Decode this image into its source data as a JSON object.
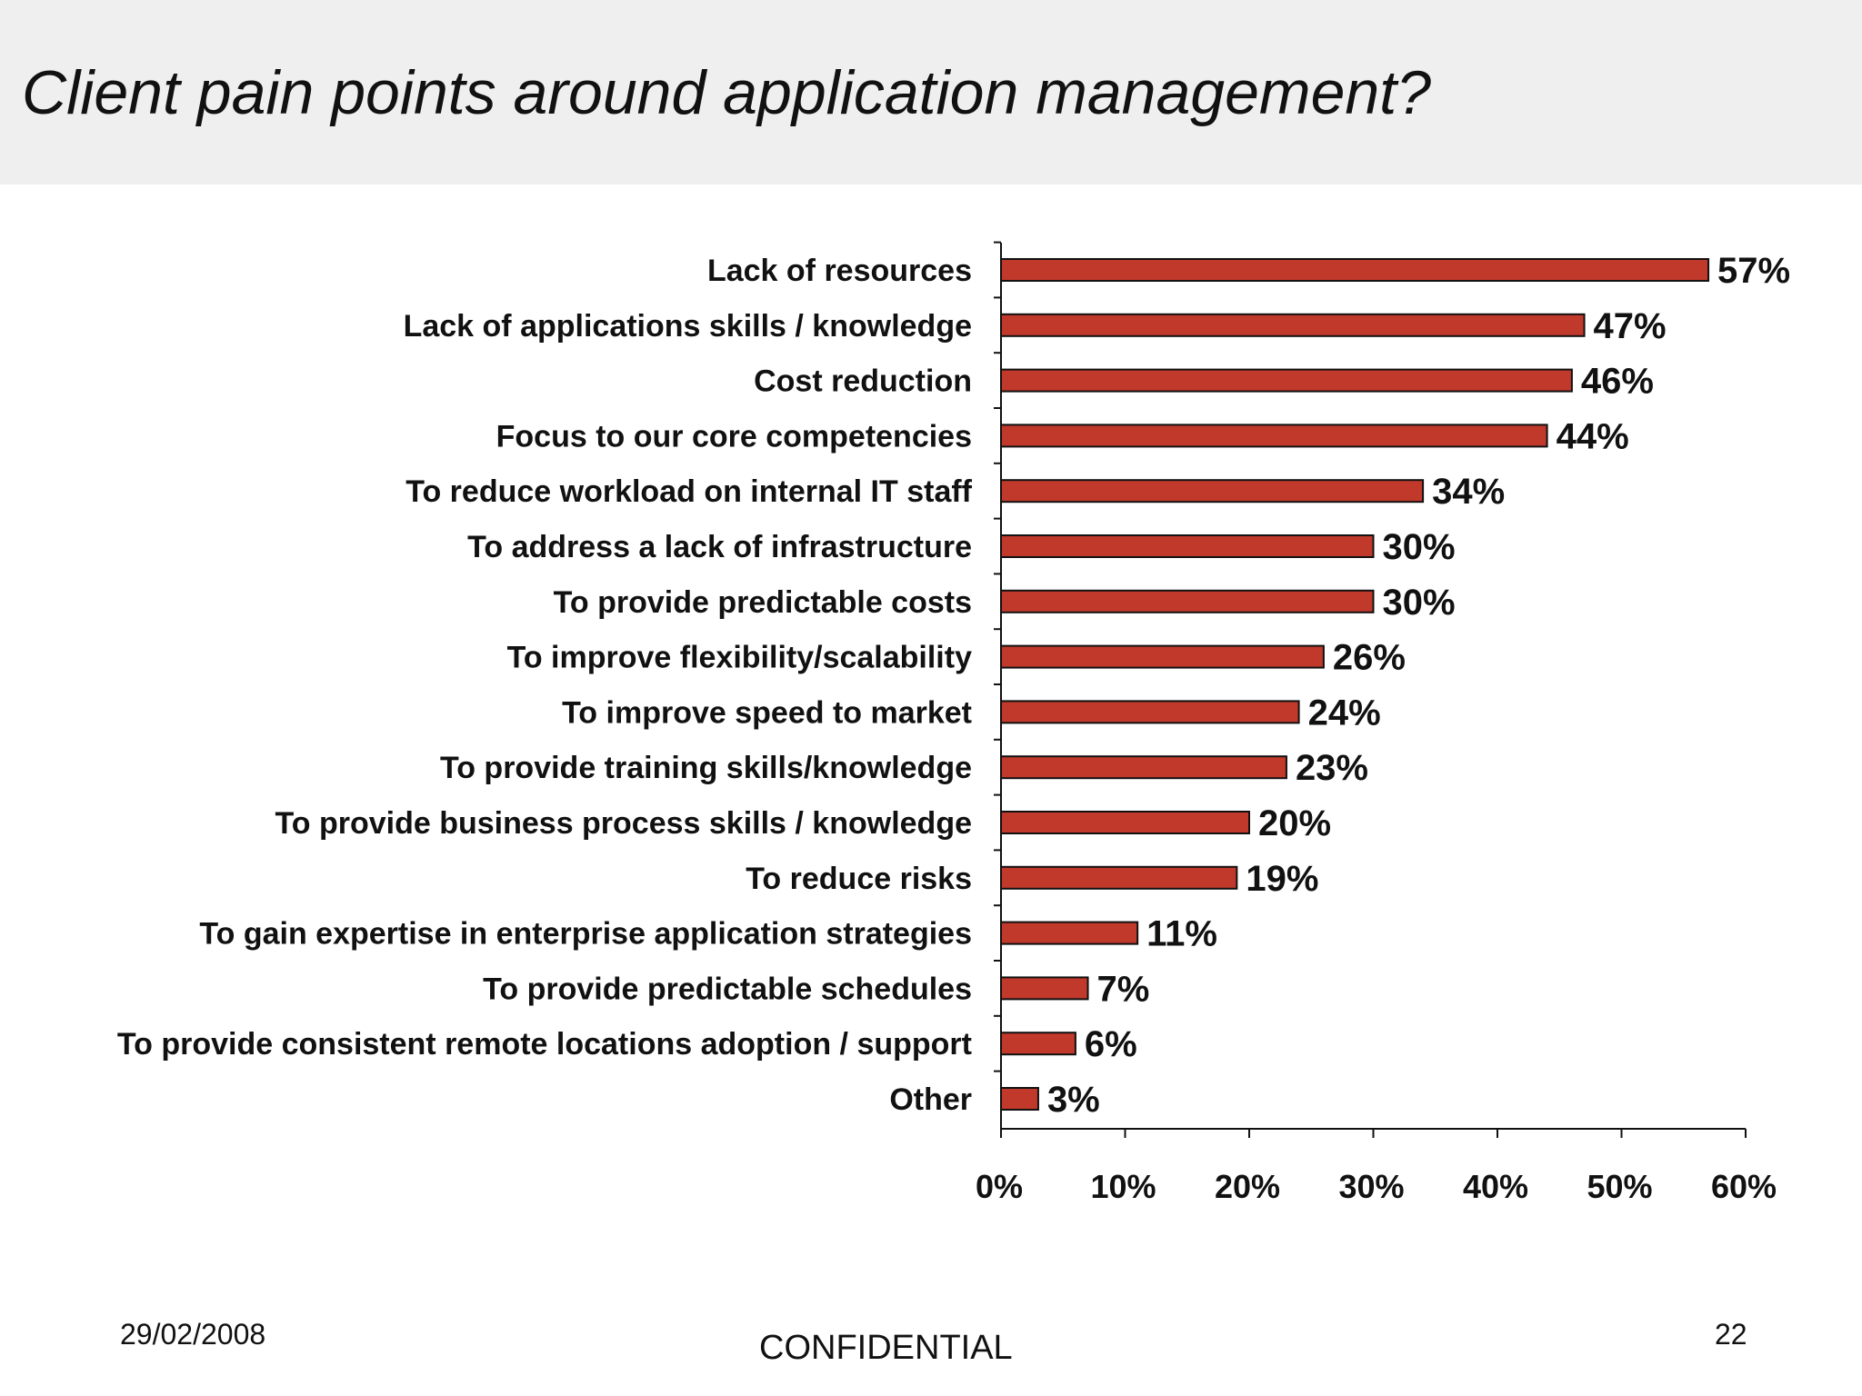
{
  "slide": {
    "title": "Client pain points around application management?"
  },
  "chart_data": {
    "type": "bar",
    "orientation": "horizontal",
    "categories": [
      "Lack of resources",
      "Lack of applications skills / knowledge",
      "Cost reduction",
      "Focus to our core competencies",
      "To reduce workload on internal IT staff",
      "To address a lack of infrastructure",
      "To provide predictable costs",
      "To improve flexibility/scalability",
      "To improve speed to market",
      "To provide training skills/knowledge",
      "To provide business process skills / knowledge",
      "To reduce risks",
      "To gain expertise in enterprise application strategies",
      "To provide predictable schedules",
      "To provide consistent remote locations adoption / support",
      "Other"
    ],
    "values": [
      57,
      47,
      46,
      44,
      34,
      30,
      30,
      26,
      24,
      23,
      20,
      19,
      11,
      7,
      6,
      3
    ],
    "value_labels": [
      "57%",
      "47%",
      "46%",
      "44%",
      "34%",
      "30%",
      "30%",
      "26%",
      "24%",
      "23%",
      "20%",
      "19%",
      "11%",
      "7%",
      "6%",
      "3%"
    ],
    "x_ticks": [
      0,
      10,
      20,
      30,
      40,
      50,
      60
    ],
    "x_tick_labels": [
      "0%",
      "10%",
      "20%",
      "30%",
      "40%",
      "50%",
      "60%"
    ],
    "xlim": [
      0,
      60
    ],
    "grid": false,
    "legend": "none",
    "bar_color": "#c0392b"
  },
  "footer": {
    "date": "29/02/2008",
    "confidential": "CONFIDENTIAL",
    "page_number": "22"
  }
}
